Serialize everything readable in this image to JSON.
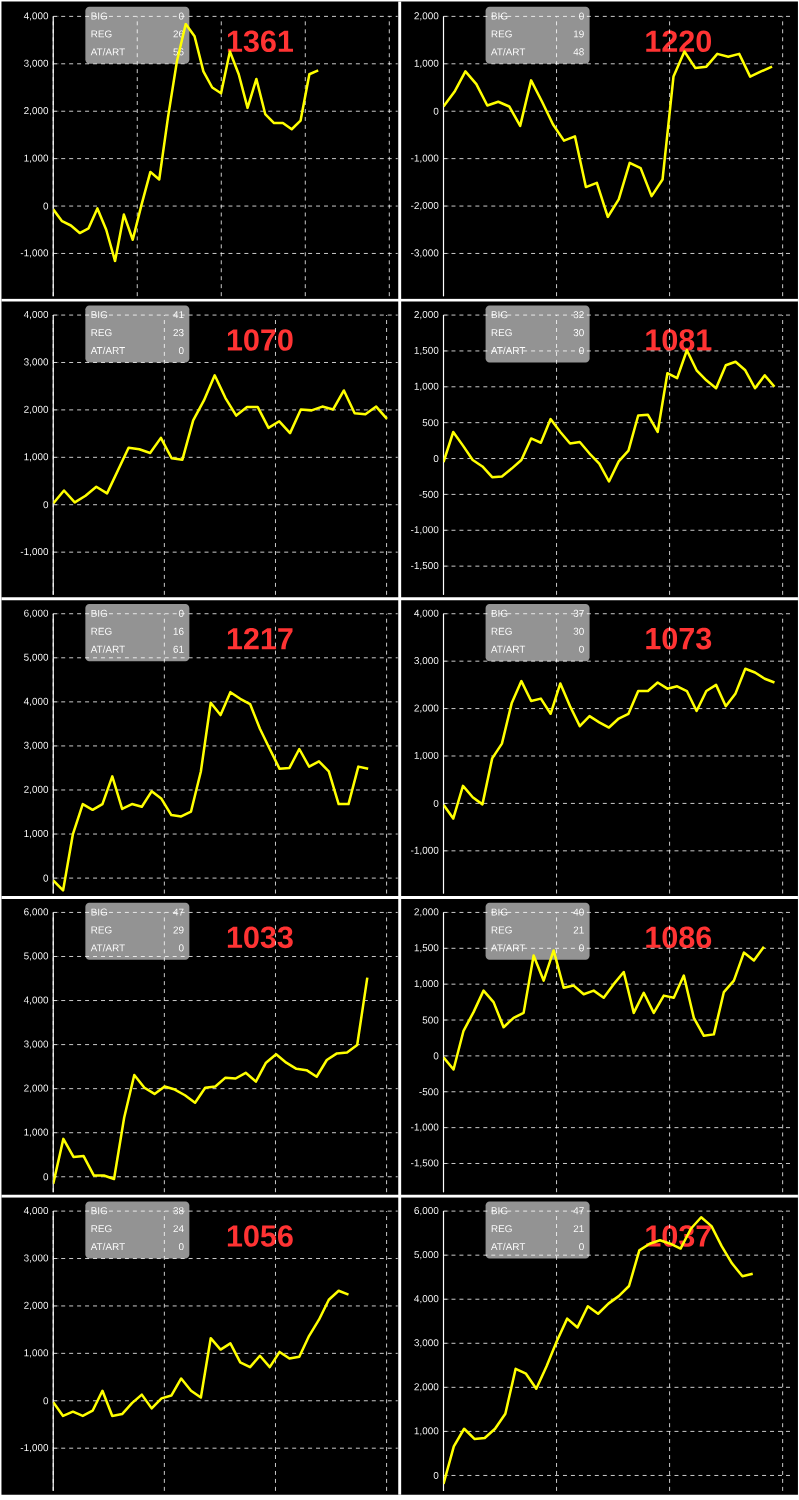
{
  "chart_data": [
    {
      "type": "line",
      "title": "1361",
      "annotations": [
        "BIG",
        "0",
        "REG",
        "26",
        "AT/ART",
        "56"
      ],
      "categories": [
        null,
        null,
        null,
        null,
        null,
        null,
        null,
        null,
        null,
        null,
        null,
        null,
        null,
        null,
        null,
        null,
        null,
        null,
        null,
        null,
        null,
        null,
        null,
        null,
        null,
        null,
        null,
        null,
        null,
        null,
        null,
        null,
        null,
        null,
        null,
        null,
        null,
        null,
        null,
        null
      ],
      "ylim": [
        -1900,
        4000
      ],
      "yticks": [
        {
          "value": -1000,
          "label": "-1,000"
        },
        {
          "value": 0,
          "label": "0"
        },
        {
          "value": 1000,
          "label": "1,000"
        },
        {
          "value": 2000,
          "label": "2,000"
        },
        {
          "value": 3000,
          "label": "3,000"
        },
        {
          "value": 4000,
          "label": "4,000"
        }
      ],
      "grid": true,
      "tick_labels": "y",
      "series": [
        {
          "color": "#ffff00",
          "values": [
            -70,
            -320,
            -410,
            -570,
            -470,
            -50,
            -500,
            -1160,
            -180,
            -710,
            30,
            720,
            560,
            1880,
            3050,
            3840,
            3580,
            2840,
            2500,
            2380,
            3260,
            2780,
            2070,
            2680,
            1940,
            1750,
            1750,
            1620,
            1800,
            2780,
            2860,
            null,
            null,
            null,
            null,
            null,
            null,
            null,
            null,
            null
          ]
        }
      ]
    },
    {
      "type": "line",
      "title": "1220",
      "annotations": [
        "BIG",
        "0",
        "REG",
        "19",
        "AT/ART",
        "48"
      ],
      "categories": [
        null,
        null,
        null,
        null,
        null,
        null,
        null,
        null,
        null,
        null,
        null,
        null,
        null,
        null,
        null,
        null,
        null,
        null,
        null,
        null,
        null,
        null,
        null,
        null,
        null,
        null,
        null,
        null,
        null,
        null,
        null,
        null,
        null
      ],
      "ylim": [
        -3900,
        2000
      ],
      "yticks": [
        {
          "value": -3000,
          "label": "-3,000"
        },
        {
          "value": -2000,
          "label": "-2,000"
        },
        {
          "value": -1000,
          "label": "-1,000"
        },
        {
          "value": 0,
          "label": "0"
        },
        {
          "value": 1000,
          "label": "1,000"
        },
        {
          "value": 2000,
          "label": "2,000"
        }
      ],
      "grid": true,
      "tick_labels": "y",
      "series": [
        {
          "color": "#ffff00",
          "values": [
            100,
            410,
            840,
            570,
            120,
            200,
            100,
            -310,
            650,
            200,
            -280,
            -620,
            -530,
            -1600,
            -1510,
            -2230,
            -1860,
            -1090,
            -1200,
            -1790,
            -1440,
            730,
            1260,
            910,
            940,
            1210,
            1150,
            1210,
            730,
            840,
            940,
            null,
            null
          ]
        }
      ]
    },
    {
      "type": "line",
      "title": "1070",
      "annotations": [
        "BIG",
        "41",
        "REG",
        "23",
        "AT/ART",
        "0"
      ],
      "categories": [
        null,
        null,
        null,
        null,
        null,
        null,
        null,
        null,
        null,
        null,
        null,
        null,
        null,
        null,
        null,
        null,
        null,
        null,
        null,
        null,
        null,
        null,
        null,
        null,
        null,
        null,
        null,
        null,
        null,
        null,
        null,
        null,
        null
      ],
      "ylim": [
        -1900,
        4000
      ],
      "yticks": [
        {
          "value": -1000,
          "label": "-1,000"
        },
        {
          "value": 0,
          "label": "0"
        },
        {
          "value": 1000,
          "label": "1,000"
        },
        {
          "value": 2000,
          "label": "2,000"
        },
        {
          "value": 3000,
          "label": "3,000"
        },
        {
          "value": 4000,
          "label": "4,000"
        }
      ],
      "grid": true,
      "tick_labels": "y",
      "series": [
        {
          "color": "#ffff00",
          "values": [
            30,
            300,
            50,
            190,
            380,
            240,
            720,
            1200,
            1170,
            1090,
            1410,
            980,
            950,
            1780,
            2200,
            2730,
            2250,
            1880,
            2060,
            2060,
            1620,
            1760,
            1510,
            2010,
            1990,
            2070,
            2010,
            2410,
            1930,
            1910,
            2070,
            1810,
            null
          ]
        }
      ]
    },
    {
      "type": "line",
      "title": "1081",
      "annotations": [
        "BIG",
        "32",
        "REG",
        "30",
        "AT/ART",
        "0"
      ],
      "categories": [
        null,
        null,
        null,
        null,
        null,
        null,
        null,
        null,
        null,
        null,
        null,
        null,
        null,
        null,
        null,
        null,
        null,
        null,
        null,
        null,
        null,
        null,
        null,
        null,
        null,
        null,
        null,
        null,
        null,
        null,
        null,
        null,
        null,
        null,
        null,
        null,
        null
      ],
      "ylim": [
        -1900,
        2000
      ],
      "yticks": [
        {
          "value": -1500,
          "label": "-1,500"
        },
        {
          "value": -1000,
          "label": "-1,000"
        },
        {
          "value": -500,
          "label": "-500"
        },
        {
          "value": 0,
          "label": "0"
        },
        {
          "value": 500,
          "label": "500"
        },
        {
          "value": 1000,
          "label": "1,000"
        },
        {
          "value": 1500,
          "label": "1,500"
        },
        {
          "value": 2000,
          "label": "2,000"
        }
      ],
      "grid": true,
      "tick_labels": "y",
      "series": [
        {
          "color": "#ffff00",
          "values": [
            -50,
            370,
            180,
            -20,
            -110,
            -260,
            -250,
            -140,
            -20,
            280,
            220,
            550,
            370,
            210,
            230,
            70,
            -70,
            -320,
            -40,
            110,
            600,
            610,
            370,
            1190,
            1120,
            1510,
            1230,
            1090,
            980,
            1300,
            1350,
            1230,
            980,
            1160,
            1000,
            null,
            null
          ]
        }
      ]
    },
    {
      "type": "line",
      "title": "1217",
      "annotations": [
        "BIG",
        "0",
        "REG",
        "16",
        "AT/ART",
        "61"
      ],
      "categories": [
        null,
        null,
        null,
        null,
        null,
        null,
        null,
        null,
        null,
        null,
        null,
        null,
        null,
        null,
        null,
        null,
        null,
        null,
        null,
        null,
        null,
        null,
        null,
        null,
        null,
        null,
        null,
        null,
        null,
        null,
        null,
        null,
        null,
        null,
        null,
        null
      ],
      "ylim": [
        -350,
        6000
      ],
      "yticks": [
        {
          "value": 0,
          "label": "0"
        },
        {
          "value": 1000,
          "label": "1,000"
        },
        {
          "value": 2000,
          "label": "2,000"
        },
        {
          "value": 3000,
          "label": "3,000"
        },
        {
          "value": 4000,
          "label": "4,000"
        },
        {
          "value": 5000,
          "label": "5,000"
        },
        {
          "value": 6000,
          "label": "6,000"
        }
      ],
      "grid": true,
      "tick_labels": "y",
      "series": [
        {
          "color": "#ffff00",
          "values": [
            -50,
            -280,
            1000,
            1680,
            1550,
            1680,
            2310,
            1570,
            1680,
            1620,
            1970,
            1800,
            1430,
            1400,
            1510,
            2420,
            3980,
            3700,
            4220,
            4070,
            3950,
            3390,
            2930,
            2480,
            2500,
            2930,
            2530,
            2650,
            2420,
            1680,
            1680,
            2530,
            2480,
            null,
            null,
            null
          ]
        }
      ]
    },
    {
      "type": "line",
      "title": "1073",
      "annotations": [
        "BIG",
        "37",
        "REG",
        "30",
        "AT/ART",
        "0"
      ],
      "categories": [
        null,
        null,
        null,
        null,
        null,
        null,
        null,
        null,
        null,
        null,
        null,
        null,
        null,
        null,
        null,
        null,
        null,
        null,
        null,
        null,
        null,
        null,
        null,
        null,
        null,
        null,
        null,
        null,
        null,
        null,
        null,
        null,
        null,
        null,
        null,
        null,
        null
      ],
      "ylim": [
        -1900,
        4000
      ],
      "yticks": [
        {
          "value": -1000,
          "label": "-1,000"
        },
        {
          "value": 0,
          "label": "0"
        },
        {
          "value": 1000,
          "label": "1,000"
        },
        {
          "value": 2000,
          "label": "2,000"
        },
        {
          "value": 3000,
          "label": "3,000"
        },
        {
          "value": 4000,
          "label": "4,000"
        }
      ],
      "grid": true,
      "tick_labels": "y",
      "series": [
        {
          "color": "#ffff00",
          "values": [
            -30,
            -320,
            370,
            130,
            -20,
            950,
            1260,
            2110,
            2580,
            2160,
            2210,
            1890,
            2530,
            2050,
            1630,
            1840,
            1710,
            1600,
            1790,
            1890,
            2370,
            2370,
            2550,
            2420,
            2470,
            2370,
            1950,
            2370,
            2500,
            2050,
            2320,
            2840,
            2760,
            2630,
            2550,
            null,
            null
          ]
        }
      ]
    },
    {
      "type": "line",
      "title": "1033",
      "annotations": [
        "BIG",
        "47",
        "REG",
        "29",
        "AT/ART",
        "0"
      ],
      "categories": [
        null,
        null,
        null,
        null,
        null,
        null,
        null,
        null,
        null,
        null,
        null,
        null,
        null,
        null,
        null,
        null,
        null,
        null,
        null,
        null,
        null,
        null,
        null,
        null,
        null,
        null,
        null,
        null,
        null,
        null,
        null,
        null,
        null,
        null,
        null
      ],
      "ylim": [
        -350,
        6000
      ],
      "yticks": [
        {
          "value": 0,
          "label": "0"
        },
        {
          "value": 1000,
          "label": "1,000"
        },
        {
          "value": 2000,
          "label": "2,000"
        },
        {
          "value": 3000,
          "label": "3,000"
        },
        {
          "value": 4000,
          "label": "4,000"
        },
        {
          "value": 5000,
          "label": "5,000"
        },
        {
          "value": 6000,
          "label": "6,000"
        }
      ],
      "grid": true,
      "tick_labels": "y",
      "series": [
        {
          "color": "#ffff00",
          "values": [
            -160,
            860,
            450,
            470,
            30,
            30,
            -50,
            1340,
            2310,
            2020,
            1880,
            2050,
            1980,
            1850,
            1680,
            2020,
            2050,
            2250,
            2230,
            2360,
            2160,
            2590,
            2780,
            2590,
            2450,
            2420,
            2270,
            2650,
            2800,
            2820,
            2990,
            4520,
            null,
            null,
            null
          ]
        }
      ]
    },
    {
      "type": "line",
      "title": "1086",
      "annotations": [
        "BIG",
        "40",
        "REG",
        "21",
        "AT/ART",
        "0"
      ],
      "categories": [
        null,
        null,
        null,
        null,
        null,
        null,
        null,
        null,
        null,
        null,
        null,
        null,
        null,
        null,
        null,
        null,
        null,
        null,
        null,
        null,
        null,
        null,
        null,
        null,
        null,
        null,
        null,
        null,
        null,
        null,
        null,
        null,
        null,
        null,
        null,
        null
      ],
      "ylim": [
        -1900,
        2000
      ],
      "yticks": [
        {
          "value": -1500,
          "label": "-1,500"
        },
        {
          "value": -1000,
          "label": "-1,000"
        },
        {
          "value": -500,
          "label": "-500"
        },
        {
          "value": 0,
          "label": "0"
        },
        {
          "value": 500,
          "label": "500"
        },
        {
          "value": 1000,
          "label": "1,000"
        },
        {
          "value": 1500,
          "label": "1,500"
        },
        {
          "value": 2000,
          "label": "2,000"
        }
      ],
      "grid": true,
      "tick_labels": "y",
      "series": [
        {
          "color": "#ffff00",
          "values": [
            -20,
            -190,
            350,
            610,
            910,
            750,
            400,
            530,
            600,
            1400,
            1050,
            1470,
            950,
            980,
            860,
            910,
            810,
            1000,
            1170,
            600,
            880,
            600,
            840,
            810,
            1120,
            530,
            280,
            300,
            890,
            1050,
            1440,
            1330,
            1520,
            null,
            null,
            null
          ]
        }
      ]
    },
    {
      "type": "line",
      "title": "1056",
      "annotations": [
        "BIG",
        "38",
        "REG",
        "24",
        "AT/ART",
        "0"
      ],
      "categories": [
        null,
        null,
        null,
        null,
        null,
        null,
        null,
        null,
        null,
        null,
        null,
        null,
        null,
        null,
        null,
        null,
        null,
        null,
        null,
        null,
        null,
        null,
        null,
        null,
        null,
        null,
        null,
        null,
        null,
        null,
        null,
        null,
        null,
        null,
        null,
        null
      ],
      "ylim": [
        -1900,
        4000
      ],
      "yticks": [
        {
          "value": -1000,
          "label": "-1,000"
        },
        {
          "value": 0,
          "label": "0"
        },
        {
          "value": 1000,
          "label": "1,000"
        },
        {
          "value": 2000,
          "label": "2,000"
        },
        {
          "value": 3000,
          "label": "3,000"
        },
        {
          "value": 4000,
          "label": "4,000"
        }
      ],
      "grid": true,
      "tick_labels": "y",
      "series": [
        {
          "color": "#ffff00",
          "values": [
            -30,
            -320,
            -230,
            -320,
            -210,
            210,
            -320,
            -280,
            -50,
            130,
            -160,
            50,
            110,
            470,
            210,
            70,
            1320,
            1080,
            1210,
            810,
            710,
            950,
            710,
            1030,
            890,
            930,
            1370,
            1710,
            2130,
            2320,
            2240,
            null,
            null,
            null,
            null,
            null
          ]
        }
      ]
    },
    {
      "type": "line",
      "title": "1037",
      "annotations": [
        "BIG",
        "47",
        "REG",
        "21",
        "AT/ART",
        "0"
      ],
      "categories": [
        null,
        null,
        null,
        null,
        null,
        null,
        null,
        null,
        null,
        null,
        null,
        null,
        null,
        null,
        null,
        null,
        null,
        null,
        null,
        null,
        null,
        null,
        null,
        null,
        null,
        null,
        null,
        null,
        null,
        null,
        null,
        null,
        null,
        null,
        null
      ],
      "ylim": [
        -350,
        6000
      ],
      "yticks": [
        {
          "value": 0,
          "label": "0"
        },
        {
          "value": 1000,
          "label": "1,000"
        },
        {
          "value": 2000,
          "label": "2,000"
        },
        {
          "value": 3000,
          "label": "3,000"
        },
        {
          "value": 4000,
          "label": "4,000"
        },
        {
          "value": 5000,
          "label": "5,000"
        },
        {
          "value": 6000,
          "label": "6,000"
        }
      ],
      "grid": true,
      "tick_labels": "y",
      "series": [
        {
          "color": "#ffff00",
          "values": [
            -190,
            660,
            1060,
            830,
            850,
            1060,
            1400,
            2420,
            2310,
            1970,
            2480,
            3050,
            3560,
            3360,
            3840,
            3670,
            3900,
            4070,
            4300,
            5110,
            5260,
            5340,
            5260,
            5150,
            5600,
            5860,
            5660,
            5200,
            4810,
            4520,
            4580,
            null,
            null,
            null,
            null
          ]
        }
      ]
    }
  ]
}
